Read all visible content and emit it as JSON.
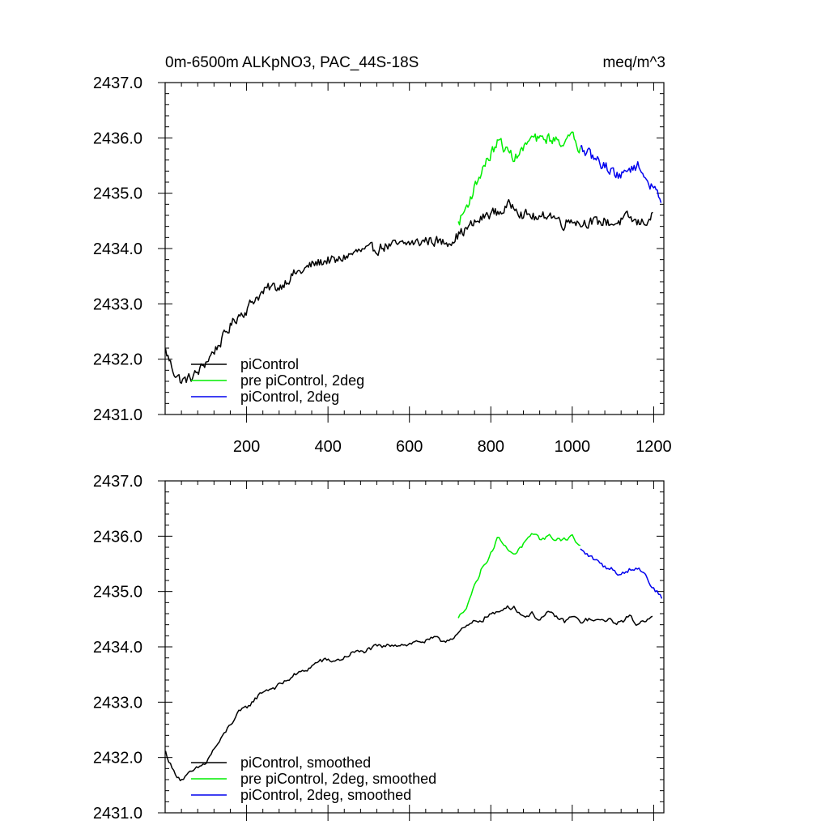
{
  "chart_data": [
    {
      "type": "line",
      "title": "0m-6500m ALKpNO3, PAC_44S-18S",
      "units": "meq/m^3",
      "xlim": [
        0,
        1225
      ],
      "ylim": [
        2431.0,
        2437.0
      ],
      "xticks": [
        200,
        400,
        600,
        800,
        1000,
        1200
      ],
      "xtick_labels": [
        "200",
        "400",
        "600",
        "800",
        "1000",
        "1200"
      ],
      "yticks": [
        2431.0,
        2432.0,
        2433.0,
        2434.0,
        2435.0,
        2436.0,
        2437.0
      ],
      "ytick_labels": [
        "2431.0",
        "2432.0",
        "2433.0",
        "2434.0",
        "2435.0",
        "2436.0",
        "2437.0"
      ],
      "legend_position": "bottom-left",
      "series": [
        {
          "name": "piControl",
          "color": "#000000",
          "x": [
            1,
            20,
            40,
            60,
            80,
            100,
            120,
            140,
            160,
            180,
            200,
            220,
            240,
            260,
            280,
            300,
            320,
            340,
            360,
            380,
            400,
            420,
            440,
            460,
            480,
            500,
            520,
            540,
            560,
            580,
            600,
            620,
            640,
            660,
            680,
            700,
            720,
            740,
            760,
            780,
            800,
            820,
            840,
            860,
            880,
            900,
            920,
            940,
            960,
            980,
            1000,
            1020,
            1040,
            1060,
            1080,
            1100,
            1120,
            1140,
            1160,
            1180,
            1200
          ],
          "y": [
            2432.15,
            2431.8,
            2431.6,
            2431.65,
            2431.75,
            2431.95,
            2432.15,
            2432.35,
            2432.6,
            2432.8,
            2432.9,
            2433.1,
            2433.2,
            2433.3,
            2433.3,
            2433.45,
            2433.55,
            2433.6,
            2433.7,
            2433.75,
            2433.8,
            2433.75,
            2433.85,
            2433.9,
            2433.95,
            2433.95,
            2434.0,
            2434.05,
            2434.05,
            2434.05,
            2434.1,
            2434.1,
            2434.15,
            2434.15,
            2434.1,
            2434.15,
            2434.25,
            2434.35,
            2434.45,
            2434.55,
            2434.65,
            2434.65,
            2434.75,
            2434.8,
            2434.6,
            2434.6,
            2434.5,
            2434.65,
            2434.55,
            2434.45,
            2434.55,
            2434.45,
            2434.5,
            2434.45,
            2434.5,
            2434.45,
            2434.5,
            2434.55,
            2434.45,
            2434.5,
            2434.6
          ]
        },
        {
          "name": "pre piControl, 2deg",
          "color": "#00ee00",
          "x": [
            720,
            740,
            760,
            780,
            800,
            820,
            840,
            860,
            880,
            900,
            920,
            940,
            960,
            980,
            1000,
            1020
          ],
          "y": [
            2434.45,
            2434.75,
            2435.1,
            2435.45,
            2435.7,
            2435.95,
            2435.75,
            2435.65,
            2435.8,
            2436.0,
            2435.95,
            2436.0,
            2435.95,
            2435.95,
            2436.0,
            2435.8
          ]
        },
        {
          "name": "piControl, 2deg",
          "color": "#0000ee",
          "x": [
            1020,
            1040,
            1060,
            1080,
            1100,
            1120,
            1140,
            1160,
            1180,
            1200,
            1220
          ],
          "y": [
            2435.8,
            2435.7,
            2435.6,
            2435.5,
            2435.4,
            2435.3,
            2435.45,
            2435.5,
            2435.3,
            2435.05,
            2434.9
          ]
        }
      ]
    },
    {
      "type": "line",
      "xlim": [
        0,
        1225
      ],
      "ylim": [
        2431.0,
        2437.0
      ],
      "xticks": [
        200,
        400,
        600,
        800,
        1000,
        1200
      ],
      "yticks": [
        2431.0,
        2432.0,
        2433.0,
        2434.0,
        2435.0,
        2436.0,
        2437.0
      ],
      "ytick_labels": [
        "2431.0",
        "2432.0",
        "2433.0",
        "2434.0",
        "2435.0",
        "2436.0",
        "2437.0"
      ],
      "legend_position": "bottom-left",
      "series": [
        {
          "name": "piControl, smoothed",
          "color": "#000000",
          "x": [
            1,
            20,
            40,
            60,
            80,
            100,
            120,
            140,
            160,
            180,
            200,
            220,
            240,
            260,
            280,
            300,
            320,
            340,
            360,
            380,
            400,
            420,
            440,
            460,
            480,
            500,
            520,
            540,
            560,
            580,
            600,
            620,
            640,
            660,
            680,
            700,
            720,
            740,
            760,
            780,
            800,
            820,
            840,
            860,
            880,
            900,
            920,
            940,
            960,
            980,
            1000,
            1020,
            1040,
            1060,
            1080,
            1100,
            1120,
            1140,
            1160,
            1180,
            1200
          ],
          "y": [
            2432.1,
            2431.75,
            2431.6,
            2431.7,
            2431.8,
            2431.9,
            2432.15,
            2432.35,
            2432.6,
            2432.8,
            2432.9,
            2433.05,
            2433.2,
            2433.25,
            2433.3,
            2433.4,
            2433.5,
            2433.55,
            2433.65,
            2433.75,
            2433.75,
            2433.75,
            2433.8,
            2433.9,
            2433.9,
            2433.95,
            2434.0,
            2434.0,
            2434.05,
            2434.05,
            2434.05,
            2434.1,
            2434.1,
            2434.15,
            2434.1,
            2434.15,
            2434.25,
            2434.35,
            2434.45,
            2434.5,
            2434.6,
            2434.6,
            2434.75,
            2434.7,
            2434.55,
            2434.6,
            2434.5,
            2434.6,
            2434.55,
            2434.45,
            2434.55,
            2434.45,
            2434.5,
            2434.45,
            2434.5,
            2434.45,
            2434.45,
            2434.55,
            2434.4,
            2434.5,
            2434.6
          ]
        },
        {
          "name": "pre piControl, 2deg, smoothed",
          "color": "#00ee00",
          "x": [
            720,
            740,
            760,
            780,
            800,
            820,
            840,
            860,
            880,
            900,
            920,
            940,
            960,
            980,
            1000,
            1020
          ],
          "y": [
            2434.5,
            2434.75,
            2435.1,
            2435.45,
            2435.7,
            2436.0,
            2435.75,
            2435.7,
            2435.85,
            2436.0,
            2435.95,
            2436.0,
            2435.95,
            2435.95,
            2436.0,
            2435.8
          ]
        },
        {
          "name": "piControl, 2deg, smoothed",
          "color": "#0000ee",
          "x": [
            1020,
            1040,
            1060,
            1080,
            1100,
            1120,
            1140,
            1160,
            1180,
            1200,
            1220
          ],
          "y": [
            2435.75,
            2435.65,
            2435.55,
            2435.45,
            2435.4,
            2435.3,
            2435.4,
            2435.45,
            2435.3,
            2435.05,
            2434.9
          ]
        }
      ]
    }
  ]
}
